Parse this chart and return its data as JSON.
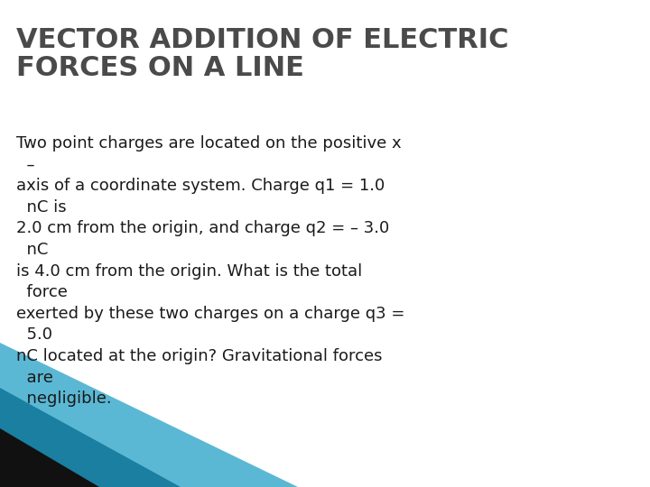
{
  "title_line1": "VECTOR ADDITION OF ELECTRIC",
  "title_line2": "FORCES ON A LINE",
  "title_color": "#4a4a4a",
  "title_fontsize": 22,
  "title_fontweight": "bold",
  "body_lines": [
    "Two point charges are located on the positive x",
    "  –",
    "axis of a coordinate system. Charge q1 = 1.0",
    "  nC is",
    "2.0 cm from the origin, and charge q2 = – 3.0",
    "  nC",
    "is 4.0 cm from the origin. What is the total",
    "  force",
    "exerted by these two charges on a charge q3 =",
    "  5.0",
    "nC located at the origin? Gravitational forces",
    "  are",
    "  negligible."
  ],
  "body_fontsize": 13,
  "body_color": "#1a1a1a",
  "background_color": "#ffffff",
  "deco_color_light": "#5bb8d4",
  "deco_color_mid": "#1a7fa0",
  "deco_color_dark": "#111111"
}
